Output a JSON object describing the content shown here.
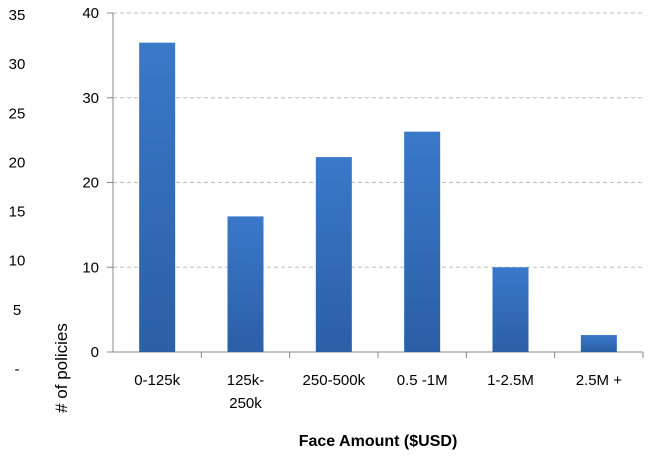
{
  "chart_data": {
    "type": "bar",
    "categories": [
      "0-125k",
      "125k-250k",
      "250-500k",
      "0.5 -1M",
      "1-2.5M",
      "2.5M +"
    ],
    "category_lines": [
      [
        "0-125k"
      ],
      [
        "125k-",
        "250k"
      ],
      [
        "250-500k"
      ],
      [
        "0.5 -1M"
      ],
      [
        "1-2.5M"
      ],
      [
        "2.5M +"
      ]
    ],
    "values": [
      36.5,
      16,
      23,
      26,
      10,
      2
    ],
    "xlabel": "Face Amount ($USD)",
    "ylabel": "# of policies",
    "ylim": [
      0,
      40
    ],
    "y_ticks_inner": [
      "0",
      "10",
      "20",
      "30",
      "40"
    ],
    "y_ticks_outer": [
      "-",
      "5",
      "10",
      "15",
      "20",
      "25",
      "30",
      "35"
    ],
    "grid": true,
    "bar_color": "#3a78c9",
    "bar_color_dark": "#2b5fa6"
  }
}
